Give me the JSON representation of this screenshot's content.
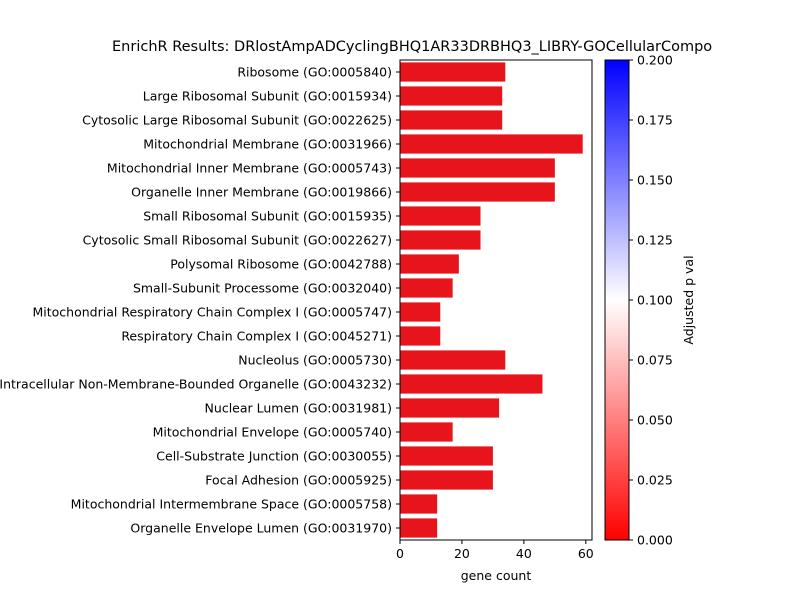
{
  "chart_data": {
    "type": "bar",
    "orientation": "horizontal",
    "title": "EnrichR Results: DRlostAmpADCyclingBHQ1AR33DRBHQ3_LIBRY-GOCellularCompo",
    "xlabel": "gene count",
    "ylabel": "",
    "xlim": [
      0,
      62
    ],
    "x_ticks": [
      0,
      20,
      40,
      60
    ],
    "categories": [
      "Ribosome (GO:0005840)",
      "Large Ribosomal Subunit (GO:0015934)",
      "Cytosolic Large Ribosomal Subunit (GO:0022625)",
      "Mitochondrial Membrane (GO:0031966)",
      "Mitochondrial Inner Membrane (GO:0005743)",
      "Organelle Inner Membrane (GO:0019866)",
      "Small Ribosomal Subunit (GO:0015935)",
      "Cytosolic Small Ribosomal Subunit (GO:0022627)",
      "Polysomal Ribosome (GO:0042788)",
      "Small-Subunit Processome (GO:0032040)",
      "Mitochondrial Respiratory Chain Complex I (GO:0005747)",
      "Respiratory Chain Complex I (GO:0045271)",
      "Nucleolus (GO:0005730)",
      "Intracellular Non-Membrane-Bounded Organelle (GO:0043232)",
      "Nuclear Lumen (GO:0031981)",
      "Mitochondrial Envelope (GO:0005740)",
      "Cell-Substrate Junction (GO:0030055)",
      "Focal Adhesion (GO:0005925)",
      "Mitochondrial Intermembrane Space (GO:0005758)",
      "Organelle Envelope Lumen (GO:0031970)"
    ],
    "values": [
      34,
      33,
      33,
      59,
      50,
      50,
      26,
      26,
      19,
      17,
      13,
      13,
      34,
      46,
      32,
      17,
      30,
      30,
      12,
      12
    ],
    "bar_color": "#e8141b",
    "colorbar": {
      "label": "Adjusted p val",
      "range": [
        0,
        0.2
      ],
      "ticks": [
        "0.000",
        "0.025",
        "0.050",
        "0.075",
        "0.100",
        "0.125",
        "0.150",
        "0.175",
        "0.200"
      ],
      "colors": [
        "#ff0000",
        "#ffffff",
        "#0000ff"
      ]
    },
    "grid": false,
    "legend": "none"
  }
}
